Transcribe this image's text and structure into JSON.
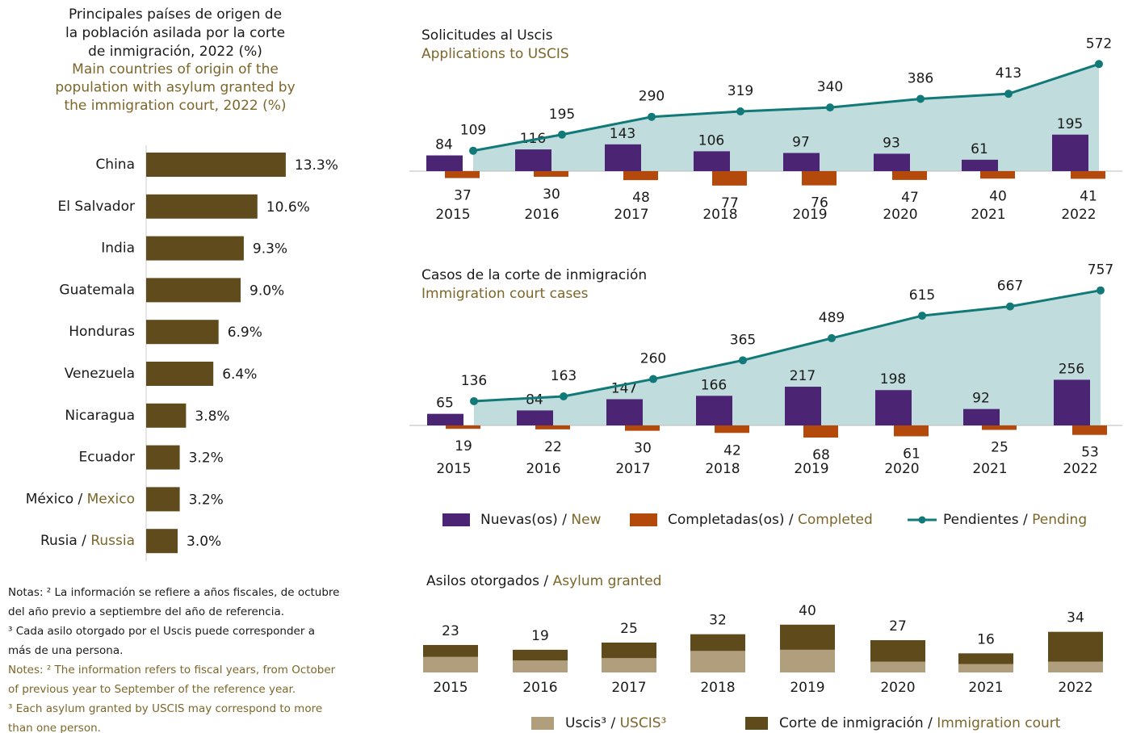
{
  "chart_data": [
    {
      "type": "hbar",
      "title": [
        "Principales países de origen de",
        "la población asilada por la corte",
        "de inmigración, 2022 (%)"
      ],
      "subtitle": [
        "Main countries of origin of the",
        "population with asylum granted by",
        "the immigration court, 2022 (%)"
      ],
      "categories": [
        "China",
        "El Salvador",
        "India",
        "Guatemala",
        "Honduras",
        "Venezuela",
        "Nicaragua",
        "Ecuador",
        "México / Mexico",
        "Rusia / Russia"
      ],
      "values": [
        13.3,
        10.6,
        9.3,
        9.0,
        6.9,
        6.4,
        3.8,
        3.2,
        3.2,
        3.0
      ],
      "value_labels": [
        "13.3%",
        "10.6%",
        "9.3%",
        "9.0%",
        "6.9%",
        "6.4%",
        "3.8%",
        "3.2%",
        "3.2%",
        "3.0%"
      ],
      "color": "#604b1d"
    },
    {
      "type": "combo",
      "title": "Solicitudes al Uscis",
      "subtitle": "Applications to USCIS",
      "categories": [
        "2015",
        "2016",
        "2017",
        "2018",
        "2019",
        "2020",
        "2021",
        "2022"
      ],
      "series": [
        {
          "color": "#4b2473",
          "values": [
            84,
            116,
            143,
            106,
            97,
            93,
            61,
            195
          ]
        },
        {
          "color": "#b34a0c",
          "values": [
            37,
            30,
            48,
            77,
            76,
            47,
            40,
            41
          ]
        },
        {
          "color": "#117a78",
          "values": [
            109,
            195,
            290,
            319,
            340,
            386,
            413,
            572
          ]
        }
      ]
    },
    {
      "type": "combo",
      "title": "Casos de la corte de inmigración",
      "subtitle": "Immigration court cases",
      "categories": [
        "2015",
        "2016",
        "2017",
        "2018",
        "2019",
        "2020",
        "2021",
        "2022"
      ],
      "series": [
        {
          "name": "Nuevas(os) / New",
          "color": "#4b2473",
          "values": [
            65,
            84,
            147,
            166,
            217,
            198,
            92,
            256
          ]
        },
        {
          "name": "Completadas(os) / Completed",
          "color": "#b34a0c",
          "values": [
            19,
            22,
            30,
            42,
            68,
            61,
            25,
            53
          ]
        },
        {
          "name": "Pendientes / Pending",
          "color": "#117a78",
          "values": [
            136,
            163,
            260,
            365,
            489,
            615,
            667,
            757
          ]
        }
      ]
    },
    {
      "type": "stacked",
      "title": "Asilos otorgados / Asylum granted",
      "categories": [
        "2015",
        "2016",
        "2017",
        "2018",
        "2019",
        "2020",
        "2021",
        "2022"
      ],
      "series": [
        {
          "name": "Uscis³ / USCIS³",
          "color": "#b09e7d",
          "values": [
            13,
            10,
            12,
            18,
            19,
            9,
            7,
            9
          ]
        },
        {
          "name": "Corte de inmigración / Immigration court",
          "color": "#5e4a1a",
          "values": [
            10,
            9,
            13,
            14,
            21,
            18,
            9,
            25
          ]
        }
      ],
      "totals": [
        23,
        19,
        25,
        32,
        40,
        27,
        16,
        34
      ]
    }
  ],
  "notes": {
    "es": [
      "Notas: ² La información se refiere a años fiscales, de octubre",
      "del año previo a septiembre del año de referencia.",
      "³ Cada asilo otorgado por el Uscis puede corresponder a",
      "más de una persona."
    ],
    "en": [
      "Notes: ² The information refers to fiscal years, from October",
      "of previous year to September of the reference year.",
      "³ Each asylum granted by USCIS may correspond to more",
      "than one person."
    ]
  }
}
